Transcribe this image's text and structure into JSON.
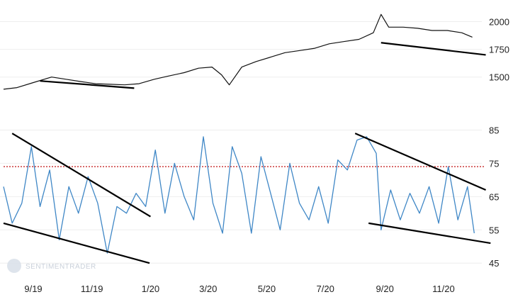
{
  "chart_data": [
    {
      "type": "line",
      "panel": "price",
      "color": "#111111",
      "y_ticks": [
        1500,
        1750,
        2000
      ],
      "ylim": [
        1300,
        2080
      ],
      "x_ticks": [
        "9/19",
        "11/19",
        "1/20",
        "3/20",
        "5/20",
        "7/20",
        "9/20",
        "11/20"
      ],
      "series": [
        {
          "x": [
            "2019-08-01",
            "2019-08-15",
            "2019-09-01",
            "2019-09-20",
            "2019-10-05",
            "2019-10-20",
            "2019-11-05",
            "2019-11-20",
            "2019-12-05",
            "2019-12-20",
            "2020-01-05",
            "2020-01-20",
            "2020-02-05",
            "2020-02-20",
            "2020-03-05",
            "2020-03-15",
            "2020-03-23",
            "2020-04-05",
            "2020-04-20",
            "2020-05-05",
            "2020-05-20",
            "2020-06-05",
            "2020-06-20",
            "2020-07-05",
            "2020-07-20",
            "2020-08-05",
            "2020-08-20",
            "2020-08-28",
            "2020-09-05",
            "2020-09-20",
            "2020-10-05",
            "2020-10-20",
            "2020-11-05",
            "2020-11-20",
            "2020-12-01"
          ],
          "values": [
            1390,
            1405,
            1450,
            1500,
            1480,
            1460,
            1440,
            1435,
            1430,
            1440,
            1480,
            1510,
            1540,
            1580,
            1590,
            1520,
            1430,
            1590,
            1640,
            1680,
            1720,
            1740,
            1760,
            1800,
            1820,
            1840,
            1900,
            2065,
            1950,
            1950,
            1940,
            1920,
            1920,
            1900,
            1860
          ]
        }
      ],
      "trendlines": [
        {
          "x": [
            "2019-09-08",
            "2019-12-15"
          ],
          "values": [
            1465,
            1400
          ]
        },
        {
          "x": [
            "2020-08-28",
            "2020-12-15"
          ],
          "values": [
            1810,
            1700
          ]
        }
      ]
    },
    {
      "type": "line",
      "panel": "indicator",
      "color": "#3f87c6",
      "y_ticks": [
        45,
        55,
        65,
        75,
        85
      ],
      "ylim": [
        41,
        90
      ],
      "x_ticks": [
        "9/19",
        "11/19",
        "1/20",
        "3/20",
        "5/20",
        "7/20",
        "9/20",
        "11/20"
      ],
      "reference_line": {
        "value": 74,
        "color": "#c62828",
        "style": "dotted"
      },
      "series": [
        {
          "x": [
            "2019-08-01",
            "2019-08-10",
            "2019-08-20",
            "2019-08-30",
            "2019-09-08",
            "2019-09-18",
            "2019-09-28",
            "2019-10-08",
            "2019-10-18",
            "2019-10-28",
            "2019-11-07",
            "2019-11-17",
            "2019-11-27",
            "2019-12-07",
            "2019-12-17",
            "2019-12-27",
            "2020-01-06",
            "2020-01-16",
            "2020-01-26",
            "2020-02-05",
            "2020-02-15",
            "2020-02-25",
            "2020-03-06",
            "2020-03-16",
            "2020-03-26",
            "2020-04-05",
            "2020-04-15",
            "2020-04-25",
            "2020-05-05",
            "2020-05-15",
            "2020-05-25",
            "2020-06-04",
            "2020-06-14",
            "2020-06-24",
            "2020-07-04",
            "2020-07-14",
            "2020-07-24",
            "2020-08-03",
            "2020-08-13",
            "2020-08-23",
            "2020-08-28",
            "2020-09-07",
            "2020-09-17",
            "2020-09-27",
            "2020-10-07",
            "2020-10-17",
            "2020-10-27",
            "2020-11-06",
            "2020-11-16",
            "2020-11-26",
            "2020-12-03"
          ],
          "values": [
            68,
            57,
            63,
            80,
            62,
            73,
            52,
            68,
            60,
            71,
            63,
            48,
            62,
            60,
            66,
            62,
            79,
            60,
            75,
            65,
            58,
            83,
            63,
            54,
            80,
            72,
            54,
            77,
            66,
            55,
            75,
            63,
            58,
            68,
            57,
            76,
            73,
            82,
            83,
            78,
            55,
            67,
            58,
            66,
            60,
            68,
            57,
            74,
            58,
            68,
            54
          ]
        }
      ],
      "trendlines": [
        {
          "x": [
            "2019-08-10",
            "2020-01-01"
          ],
          "values": [
            84,
            59
          ]
        },
        {
          "x": [
            "2019-08-01",
            "2019-12-31"
          ],
          "values": [
            57,
            45
          ]
        },
        {
          "x": [
            "2020-08-01",
            "2020-12-15"
          ],
          "values": [
            84,
            67
          ]
        },
        {
          "x": [
            "2020-08-15",
            "2020-12-20"
          ],
          "values": [
            57,
            51
          ]
        }
      ]
    }
  ],
  "watermark": {
    "text": "SENTIMENTRADER"
  }
}
